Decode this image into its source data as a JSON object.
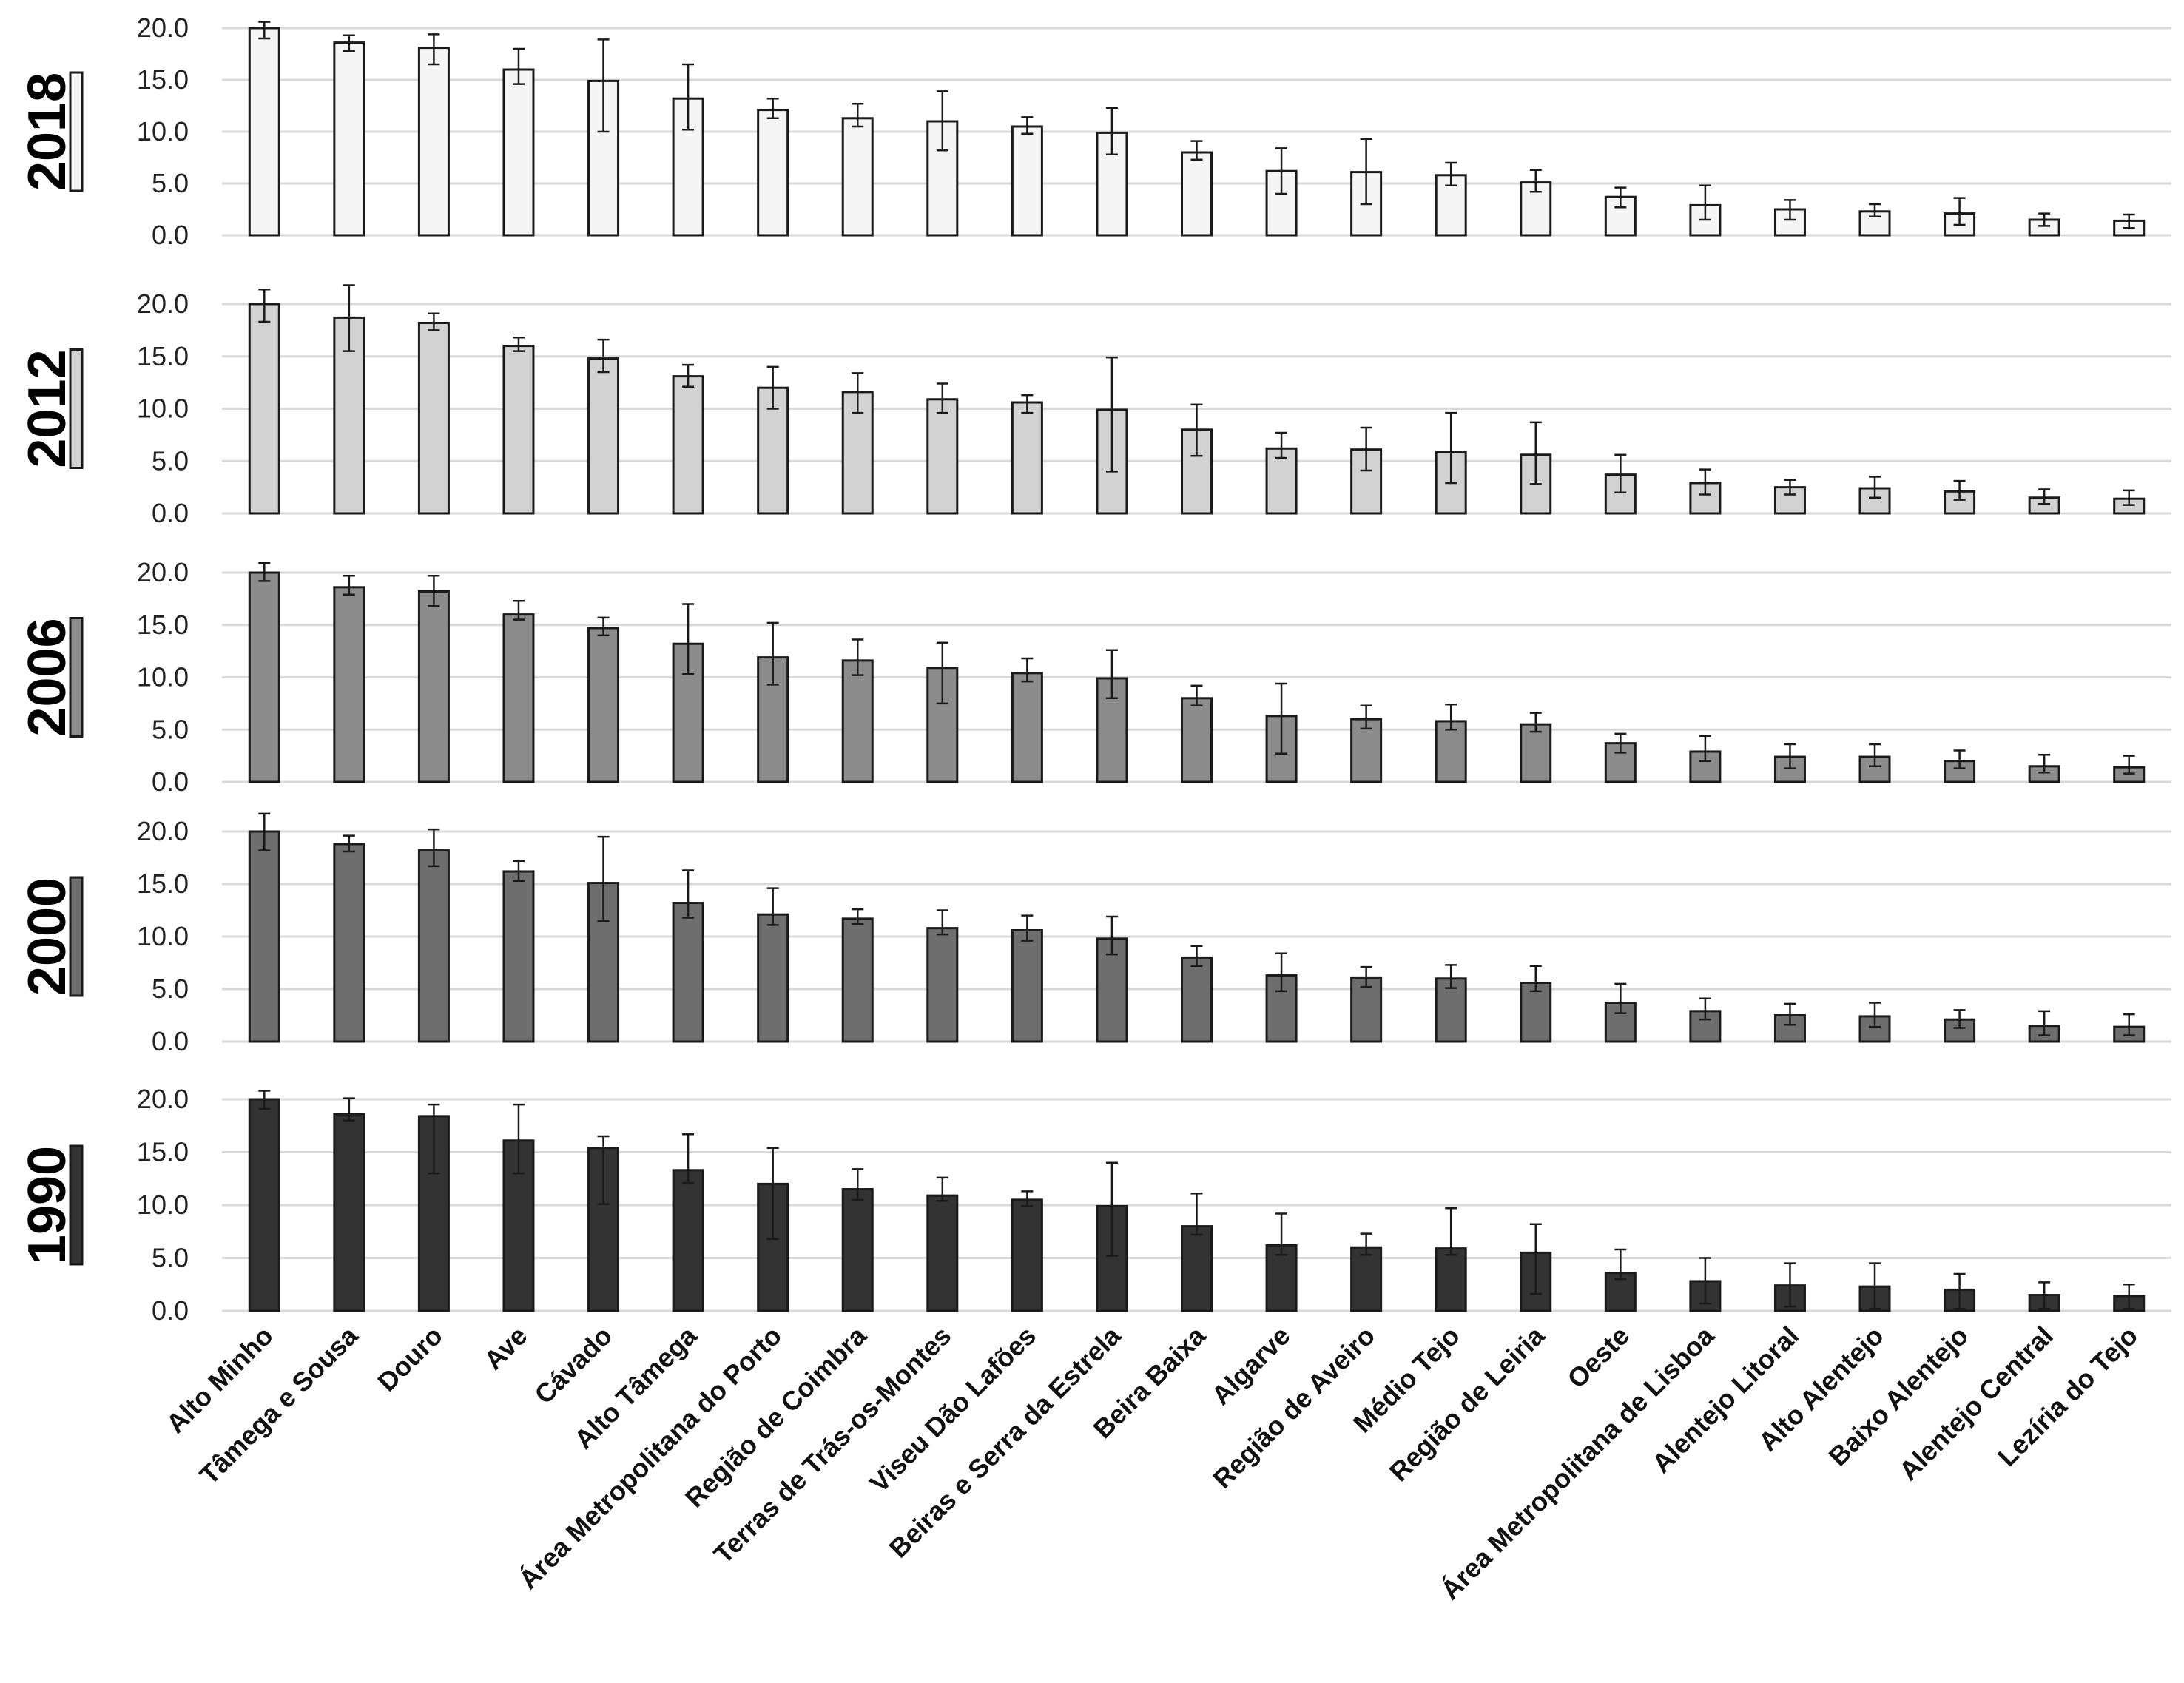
{
  "chart_data": {
    "type": "bar",
    "layout": "five vertically stacked bar panels with error bars, shared categories",
    "ylim": [
      0,
      20
    ],
    "yticks": [
      "0.0",
      "5.0",
      "10.0",
      "15.0",
      "20.0"
    ],
    "grid": true,
    "categories": [
      "Alto Minho",
      "Tâmega e Sousa",
      "Douro",
      "Ave",
      "Cávado",
      "Alto Tâmega",
      "Área Metropolitana do Porto",
      "Região de Coimbra",
      "Terras de Trás-os-Montes",
      "Viseu Dão Lafões",
      "Beiras e Serra da Estrela",
      "Beira Baixa",
      "Algarve",
      "Região de Aveiro",
      "Médio Tejo",
      "Região de Leiria",
      "Oeste",
      "Área Metropolitana de Lisboa",
      "Alentejo Litoral",
      "Alto Alentejo",
      "Baixo Alentejo",
      "Alentejo Central",
      "Lezíria do Tejo"
    ],
    "series": [
      {
        "name": "2018",
        "color": "#f5f5f5",
        "values": [
          20.0,
          18.6,
          18.1,
          16.0,
          14.9,
          13.2,
          12.1,
          11.3,
          11.0,
          10.5,
          9.9,
          8.0,
          6.2,
          6.1,
          5.8,
          5.1,
          3.7,
          2.9,
          2.5,
          2.3,
          2.1,
          1.5,
          1.4
        ],
        "err_low": [
          19.0,
          17.8,
          16.5,
          14.6,
          10.0,
          10.2,
          11.3,
          10.5,
          8.2,
          9.8,
          7.8,
          7.3,
          4.0,
          3.0,
          4.8,
          4.2,
          2.7,
          1.5,
          1.5,
          1.8,
          1.0,
          0.9,
          0.7
        ],
        "err_high": [
          20.6,
          19.3,
          19.4,
          18.0,
          18.9,
          16.5,
          13.2,
          12.7,
          13.9,
          11.4,
          12.3,
          9.1,
          8.4,
          9.3,
          7.0,
          6.3,
          4.6,
          4.8,
          3.4,
          3.0,
          3.6,
          2.1,
          2.0
        ]
      },
      {
        "name": "2012",
        "color": "#d2d2d2",
        "values": [
          20.0,
          18.7,
          18.2,
          16.0,
          14.8,
          13.1,
          12.0,
          11.6,
          10.9,
          10.6,
          9.9,
          8.0,
          6.2,
          6.1,
          5.9,
          5.6,
          3.7,
          2.9,
          2.5,
          2.4,
          2.1,
          1.5,
          1.4
        ],
        "err_low": [
          18.3,
          15.5,
          17.5,
          15.5,
          13.5,
          12.1,
          10.0,
          9.6,
          9.6,
          9.6,
          4.0,
          5.5,
          5.3,
          4.1,
          2.9,
          2.8,
          2.0,
          1.8,
          1.8,
          1.5,
          1.3,
          0.9,
          0.8
        ],
        "err_high": [
          21.4,
          21.8,
          19.1,
          16.8,
          16.6,
          14.2,
          14.0,
          13.4,
          12.4,
          11.3,
          14.9,
          10.4,
          7.7,
          8.2,
          9.6,
          8.7,
          5.6,
          4.2,
          3.2,
          3.5,
          3.1,
          2.3,
          2.2
        ]
      },
      {
        "name": "2006",
        "color": "#8c8c8c",
        "values": [
          20.0,
          18.6,
          18.2,
          16.0,
          14.7,
          13.2,
          11.9,
          11.6,
          10.9,
          10.4,
          9.9,
          8.0,
          6.3,
          6.0,
          5.8,
          5.5,
          3.7,
          2.9,
          2.4,
          2.4,
          2.0,
          1.5,
          1.4
        ],
        "err_low": [
          19.2,
          17.9,
          16.8,
          15.5,
          14.0,
          10.3,
          9.3,
          10.2,
          7.5,
          9.6,
          8.0,
          7.3,
          2.7,
          5.1,
          5.0,
          4.8,
          2.8,
          2.0,
          1.3,
          1.5,
          1.3,
          0.9,
          0.8
        ],
        "err_high": [
          20.9,
          19.7,
          19.7,
          17.3,
          15.7,
          17.0,
          15.2,
          13.6,
          13.3,
          11.8,
          12.6,
          9.2,
          9.4,
          7.3,
          7.4,
          6.6,
          4.6,
          4.4,
          3.6,
          3.6,
          3.0,
          2.6,
          2.5
        ]
      },
      {
        "name": "2000",
        "color": "#6e6e6e",
        "values": [
          20.0,
          18.8,
          18.2,
          16.2,
          15.1,
          13.2,
          12.1,
          11.7,
          10.8,
          10.6,
          9.8,
          8.0,
          6.3,
          6.1,
          6.0,
          5.6,
          3.7,
          2.9,
          2.5,
          2.4,
          2.1,
          1.5,
          1.4
        ],
        "err_low": [
          18.2,
          18.1,
          16.7,
          15.3,
          11.5,
          11.8,
          11.1,
          11.2,
          10.2,
          9.6,
          8.3,
          7.2,
          4.8,
          5.2,
          5.1,
          4.8,
          2.7,
          2.1,
          1.6,
          1.4,
          1.3,
          0.6,
          0.6
        ],
        "err_high": [
          21.7,
          19.6,
          20.2,
          17.2,
          19.5,
          16.3,
          14.6,
          12.6,
          12.5,
          12.0,
          11.9,
          9.1,
          8.4,
          7.1,
          7.3,
          7.2,
          5.5,
          4.1,
          3.6,
          3.7,
          3.0,
          2.9,
          2.6
        ]
      },
      {
        "name": "1990",
        "color": "#333333",
        "values": [
          20.0,
          18.6,
          18.4,
          16.1,
          15.4,
          13.3,
          12.0,
          11.5,
          10.9,
          10.5,
          9.9,
          8.0,
          6.2,
          6.0,
          5.9,
          5.5,
          3.6,
          2.8,
          2.4,
          2.3,
          2.0,
          1.5,
          1.4
        ],
        "err_low": [
          19.1,
          18.0,
          13.0,
          13.0,
          10.1,
          12.1,
          6.8,
          10.5,
          10.4,
          9.9,
          5.2,
          7.2,
          5.3,
          5.3,
          5.3,
          1.6,
          3.0,
          0.7,
          0.4,
          0.2,
          0.2,
          0.2,
          0.2
        ],
        "err_high": [
          20.8,
          20.1,
          19.5,
          19.5,
          16.5,
          16.7,
          15.4,
          13.4,
          12.6,
          11.3,
          14.0,
          11.1,
          9.2,
          7.3,
          9.7,
          8.2,
          5.8,
          5.0,
          4.5,
          4.5,
          3.5,
          2.7,
          2.5
        ]
      }
    ]
  }
}
